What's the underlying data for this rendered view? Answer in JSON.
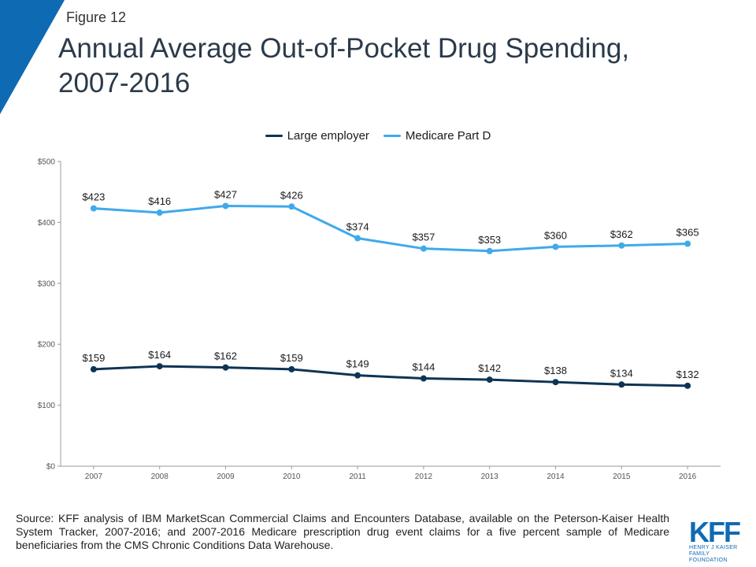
{
  "figure_label": "Figure 12",
  "title": "Annual Average Out-of-Pocket Drug Spending, 2007-2016",
  "source": "Source: KFF analysis of IBM MarketScan Commercial Claims and Encounters Database, available on the Peterson-Kaiser Health System Tracker, 2007-2016; and 2007-2016 Medicare prescription drug event claims for a five percent sample of Medicare beneficiaries from the CMS Chronic Conditions Data Warehouse.",
  "logo": {
    "mark": "KFF",
    "line1": "HENRY J KAISER",
    "line2": "FAMILY FOUNDATION"
  },
  "colors": {
    "accent_corner": "#0f6ab4",
    "large_employer": "#0d3454",
    "medicare": "#41a9ea"
  },
  "chart_data": {
    "type": "line",
    "title": "Annual Average Out-of-Pocket Drug Spending, 2007-2016",
    "x": [
      "2007",
      "2008",
      "2009",
      "2010",
      "2011",
      "2012",
      "2013",
      "2014",
      "2015",
      "2016"
    ],
    "series": [
      {
        "name": "Large employer",
        "color": "#0d3454",
        "values": [
          159,
          164,
          162,
          159,
          149,
          144,
          142,
          138,
          134,
          132
        ],
        "labels": [
          "$159",
          "$164",
          "$162",
          "$159",
          "$149",
          "$144",
          "$142",
          "$138",
          "$134",
          "$132"
        ]
      },
      {
        "name": "Medicare Part D",
        "color": "#41a9ea",
        "values": [
          423,
          416,
          427,
          426,
          374,
          357,
          353,
          360,
          362,
          365
        ],
        "labels": [
          "$423",
          "$416",
          "$427",
          "$426",
          "$374",
          "$357",
          "$353",
          "$360",
          "$362",
          "$365"
        ]
      }
    ],
    "ylim": [
      0,
      500
    ],
    "yticks": [
      0,
      100,
      200,
      300,
      400,
      500
    ],
    "ytick_labels": [
      "$0",
      "$100",
      "$200",
      "$300",
      "$400",
      "$500"
    ],
    "xlabel": "",
    "ylabel": "",
    "grid": false,
    "legend": "top-center"
  }
}
